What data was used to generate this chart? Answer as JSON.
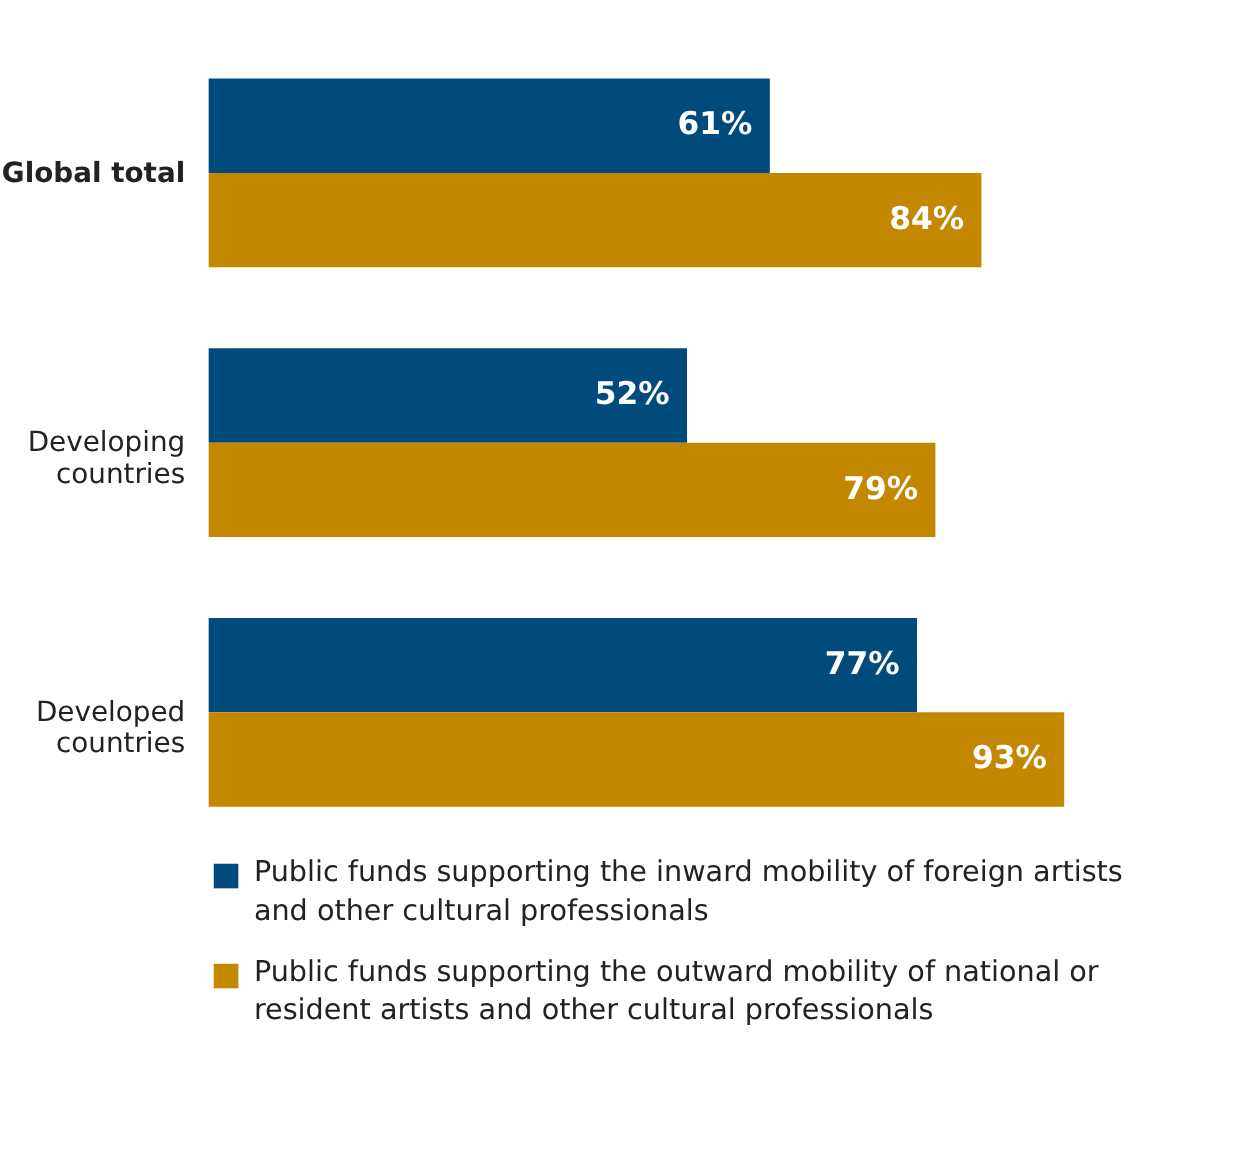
{
  "chart_data": {
    "type": "bar",
    "orientation": "horizontal",
    "legend": "bottom",
    "categories": [
      "Global total",
      "Developing\ncountries",
      "Developed\ncountries"
    ],
    "series": [
      {
        "name": "Public funds supporting the inward mobility of foreign artists and other cultural professionals",
        "color": "#004a7c",
        "values": [
          61,
          52,
          77
        ],
        "value_labels": [
          "61%",
          "52%",
          "77%"
        ]
      },
      {
        "name": "Public funds supporting the outward mobility of national or resident artists and other cultural professionals",
        "color": "#c48800",
        "values": [
          84,
          79,
          93
        ],
        "value_labels": [
          "84%",
          "79%",
          "93%"
        ]
      }
    ]
  }
}
